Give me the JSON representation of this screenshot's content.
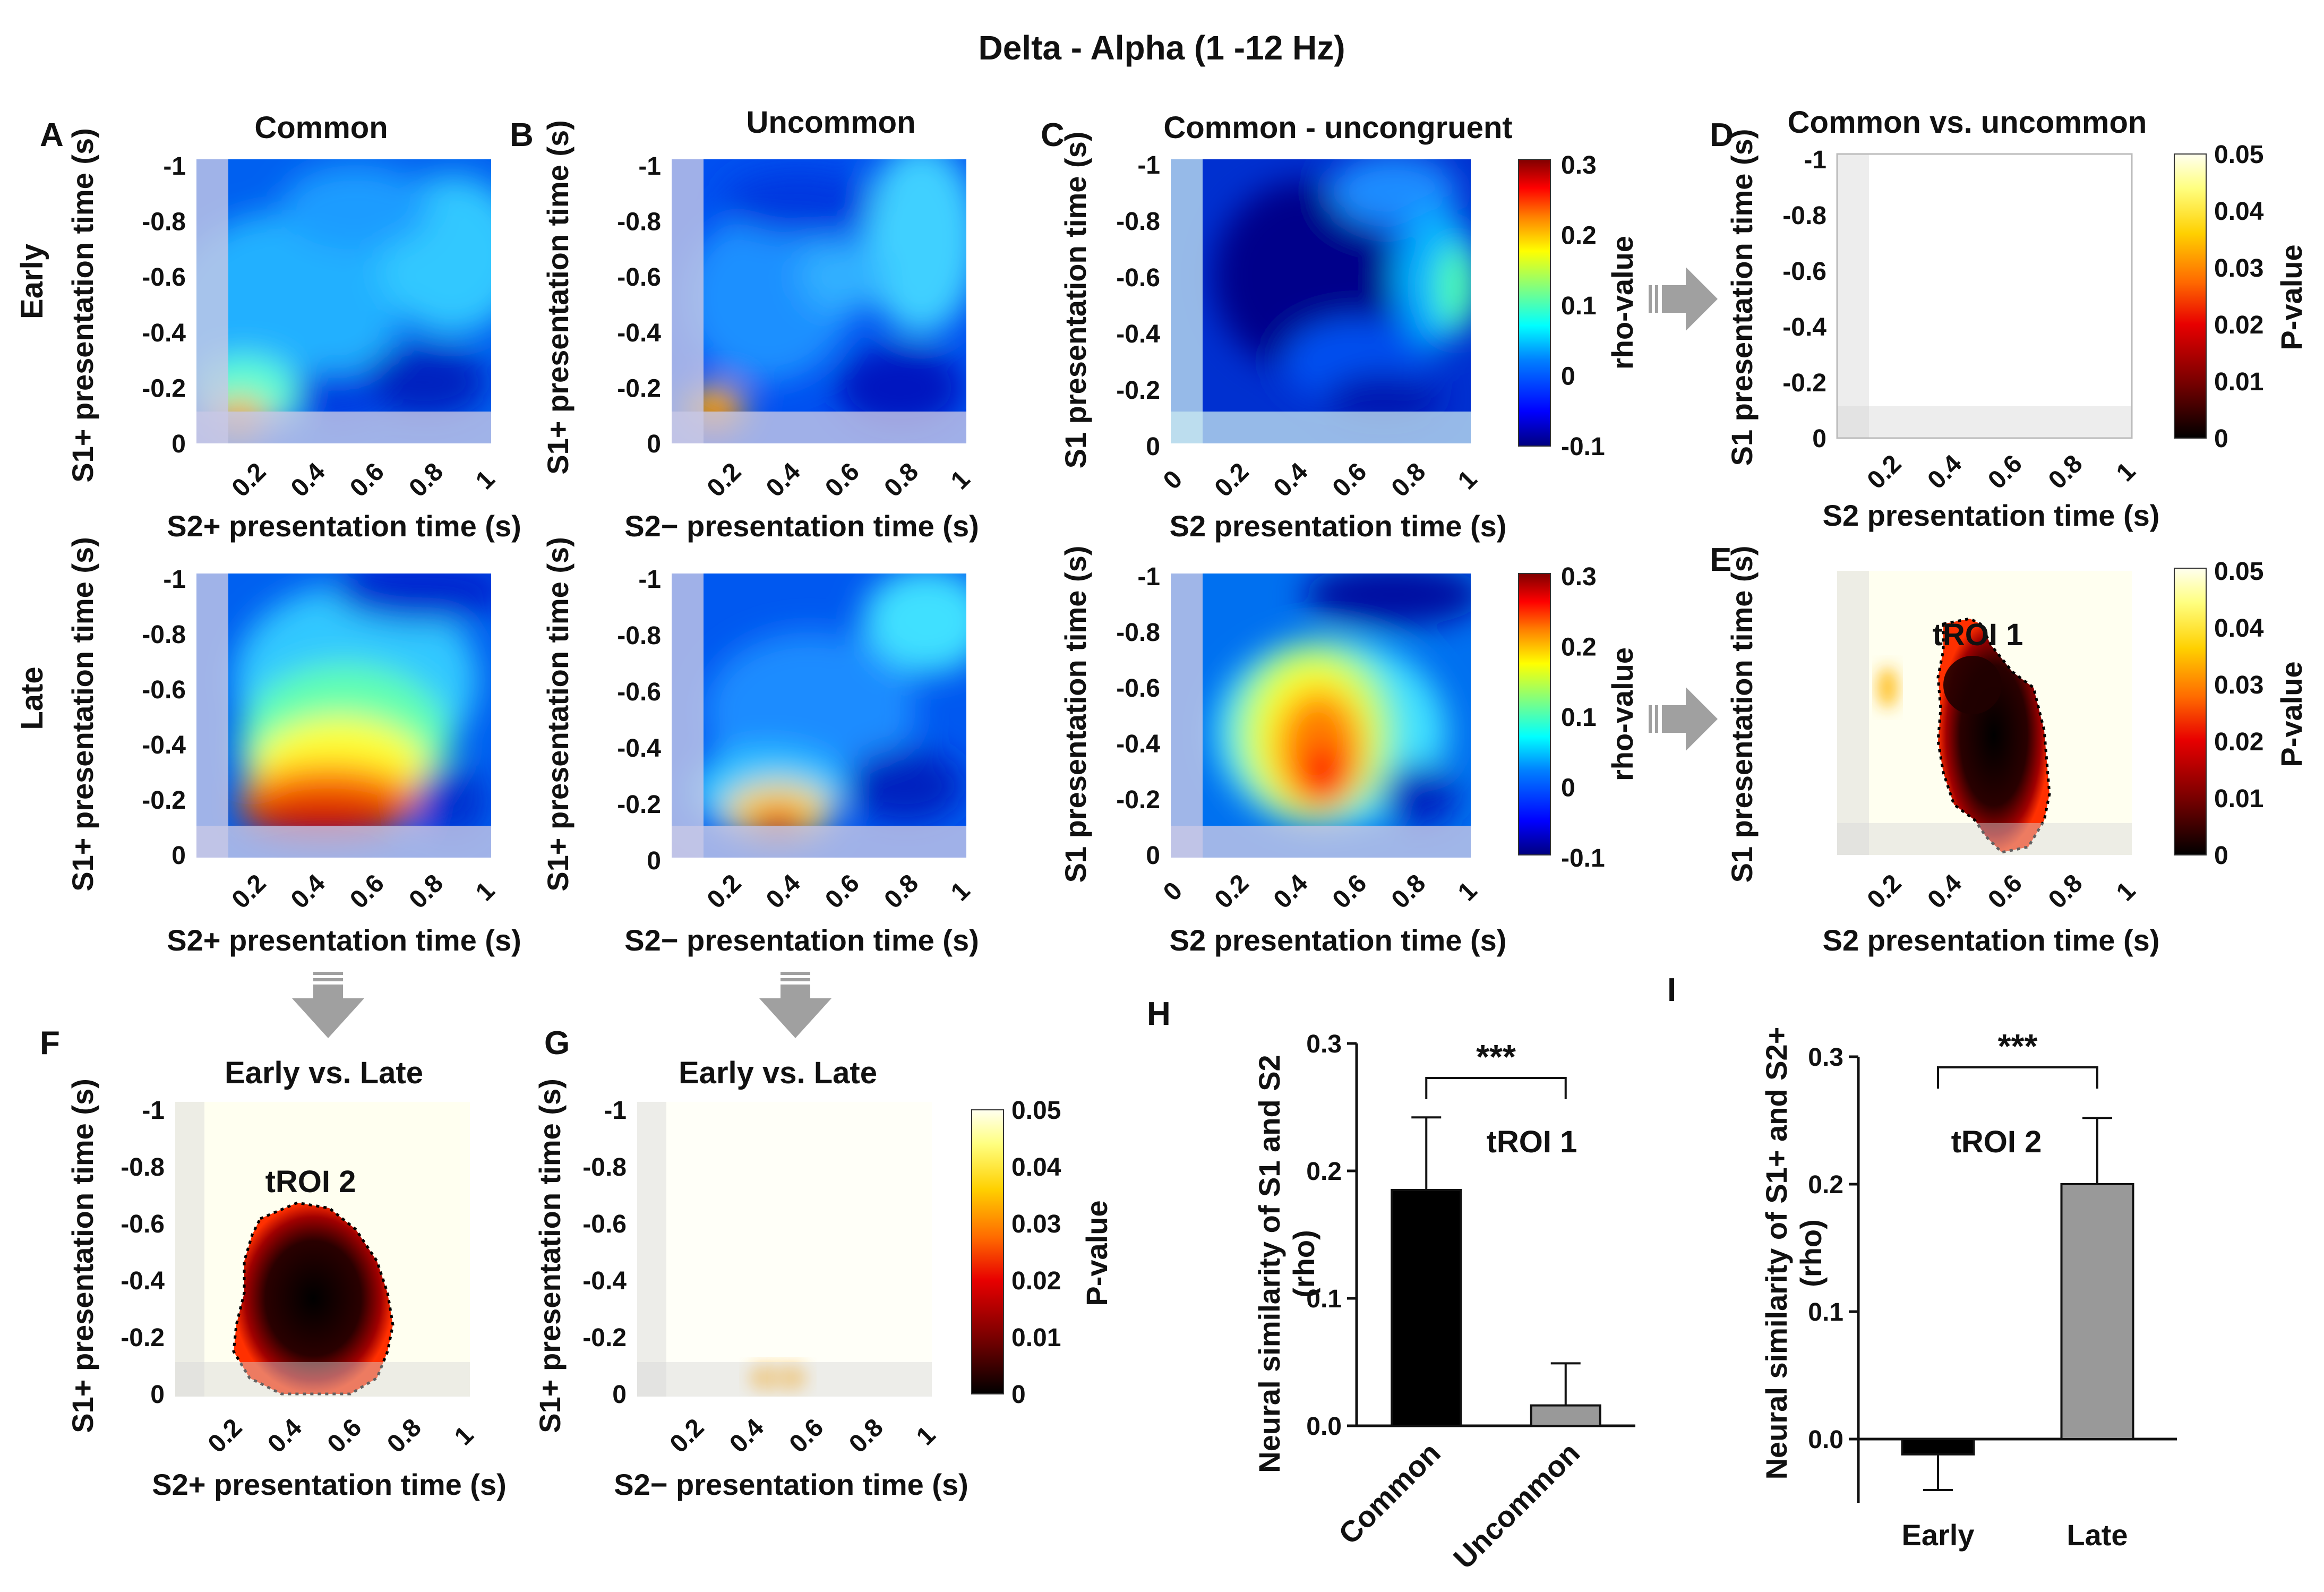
{
  "figure_title": "Delta - Alpha (1 -12 Hz)",
  "colors": {
    "jet": [
      "#00007f",
      "#0000ff",
      "#0080ff",
      "#00ffff",
      "#80ff80",
      "#ffff00",
      "#ff8000",
      "#ff0000",
      "#7f0000"
    ],
    "hot": [
      "#000000",
      "#7a0000",
      "#e80000",
      "#ff6a00",
      "#ffd000",
      "#ffff80",
      "#fffff0"
    ],
    "hatch_overlay": "#c8c8e6",
    "p_overlay": "#d7d7d7",
    "arrow": "#a0a0a0",
    "bar_common": "#000000",
    "bar_uncommon": "#999999"
  },
  "labels": {
    "common": "Common",
    "uncommon": "Uncommon",
    "common_uncongruent": "Common - uncongruent",
    "common_vs_uncommon": "Common vs. uncommon",
    "early_vs_late": "Early vs. Late",
    "early": "Early",
    "late": "Late",
    "y_s1plus": "S1+ presentation time (s)",
    "y_s1": "S1 presentation time (s)",
    "x_s2plus": "S2+ presentation time (s)",
    "x_s2minus": "S2− presentation time (s)",
    "x_s2": "S2 presentation time (s)",
    "rho_value": "rho-value",
    "p_value": "P-value",
    "troi1": "tROI 1",
    "troi2": "tROI 2",
    "h_ylabel_line1": "Neural similarity of S1 and S2",
    "i_ylabel_line1": "Neural similarity of S1+ and S2+",
    "rho_unit": "(rho)",
    "sig": "***"
  },
  "panel_letters": [
    "A",
    "B",
    "C",
    "D",
    "E",
    "F",
    "G",
    "H",
    "I"
  ],
  "axes": {
    "y_ticks": [
      "-1",
      "-0.8",
      "-0.6",
      "-0.4",
      "-0.2",
      "0"
    ],
    "x_ticks": [
      "0.2",
      "0.4",
      "0.6",
      "0.8",
      "1"
    ],
    "x_ticks_c": [
      "0",
      "0.2",
      "0.4",
      "0.6",
      "0.8",
      "1"
    ]
  },
  "colorbars": {
    "rho_ticks": [
      "0.3",
      "0.2",
      "0.1",
      "0",
      "-0.1"
    ],
    "p_ticks": [
      "0.05",
      "0.04",
      "0.03",
      "0.02",
      "0.01",
      "0"
    ]
  },
  "chart_data": [
    {
      "panel": "H",
      "type": "bar",
      "categories": [
        "Common",
        "Uncommon"
      ],
      "values": [
        0.185,
        0.016
      ],
      "errors": [
        0.057,
        0.033
      ],
      "ylabel": "Neural similarity of S1 and S2 (rho)",
      "ylim": [
        0,
        0.3
      ],
      "yticks": [
        "0.0",
        "0.1",
        "0.2",
        "0.3"
      ],
      "annotation": "tROI 1",
      "significance": "***"
    },
    {
      "panel": "I",
      "type": "bar",
      "categories": [
        "Early",
        "Late"
      ],
      "values": [
        -0.012,
        0.2
      ],
      "errors": [
        0.028,
        0.052
      ],
      "ylabel": "Neural similarity of S1+ and S2+ (rho)",
      "ylim": [
        -0.05,
        0.3
      ],
      "yticks": [
        "0.0",
        "0.1",
        "0.2",
        "0.3"
      ],
      "annotation": "tROI 2",
      "significance": "***"
    }
  ]
}
